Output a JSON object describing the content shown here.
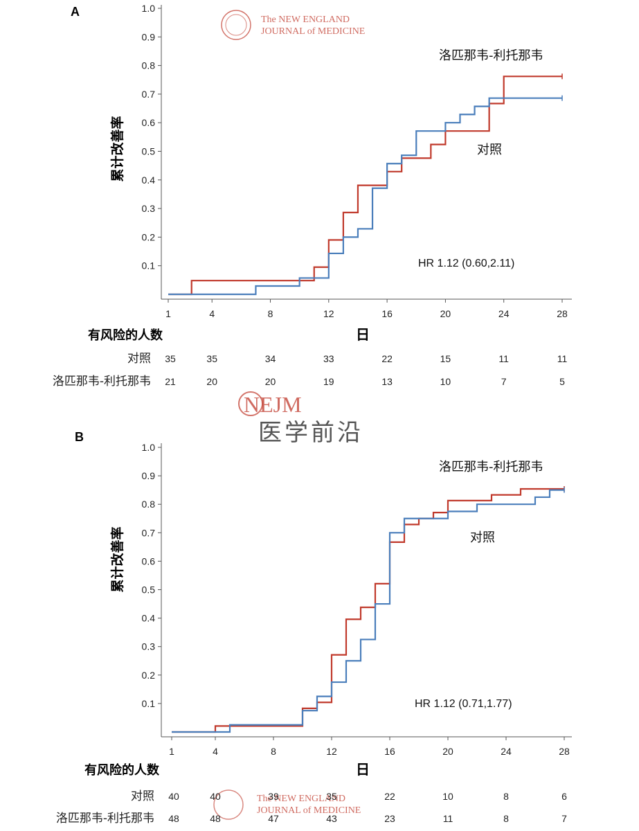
{
  "watermarks": {
    "journal_line1": "The NEW ENGLAND",
    "journal_line2": "JOURNAL of MEDICINE",
    "nejm": "NEJM",
    "center_text": "医学前沿",
    "accent": "#c0392b"
  },
  "colors": {
    "lopinavir": "#c0392b",
    "control": "#4a7ebb"
  },
  "chart_data": [
    {
      "panel": "A",
      "type": "line",
      "step": true,
      "ylabel": "累计改善率",
      "xlabel": "日",
      "yticks": [
        0.1,
        0.2,
        0.3,
        0.4,
        0.5,
        0.6,
        0.7,
        0.8,
        0.9,
        1.0
      ],
      "xticks": [
        1,
        4,
        8,
        12,
        16,
        20,
        24,
        28
      ],
      "ylim": [
        0,
        1.0
      ],
      "xlim": [
        1,
        28
      ],
      "annotation": "HR 1.12 (0.60,2.11)",
      "series": [
        {
          "name": "洛匹那韦-利托那韦",
          "color": "#c0392b",
          "x": [
            1,
            2.6,
            11,
            12,
            13,
            14,
            16,
            17,
            19,
            20,
            23,
            24,
            28
          ],
          "y": [
            0,
            0.048,
            0.095,
            0.19,
            0.286,
            0.381,
            0.429,
            0.476,
            0.524,
            0.571,
            0.667,
            0.762,
            0.762
          ]
        },
        {
          "name": "对照",
          "color": "#4a7ebb",
          "x": [
            1,
            7,
            10,
            12,
            13,
            14,
            15,
            16,
            17,
            18,
            20,
            21,
            22,
            23,
            28
          ],
          "y": [
            0,
            0.029,
            0.057,
            0.143,
            0.2,
            0.229,
            0.371,
            0.457,
            0.486,
            0.571,
            0.6,
            0.629,
            0.657,
            0.686,
            0.686
          ]
        }
      ],
      "risk_table": {
        "title": "有风险的人数",
        "rows": [
          {
            "label": "对照",
            "values": [
              "35",
              "35",
              "34",
              "33",
              "22",
              "15",
              "11",
              "11"
            ]
          },
          {
            "label": "洛匹那韦-利托那韦",
            "values": [
              "21",
              "20",
              "20",
              "19",
              "13",
              "10",
              "7",
              "5"
            ]
          }
        ]
      }
    },
    {
      "panel": "B",
      "type": "line",
      "step": true,
      "ylabel": "累计改善率",
      "xlabel": "日",
      "yticks": [
        0.1,
        0.2,
        0.3,
        0.4,
        0.5,
        0.6,
        0.7,
        0.8,
        0.9,
        1.0
      ],
      "xticks": [
        1,
        4,
        8,
        12,
        16,
        20,
        24,
        28
      ],
      "ylim": [
        0,
        1.0
      ],
      "xlim": [
        1,
        28
      ],
      "annotation": "HR 1.12 (0.71,1.77)",
      "series": [
        {
          "name": "洛匹那韦-利托那韦",
          "color": "#c0392b",
          "x": [
            1,
            4,
            10,
            11,
            12,
            13,
            14,
            15,
            16,
            17,
            18,
            19,
            20,
            23,
            25,
            28
          ],
          "y": [
            0,
            0.021,
            0.083,
            0.104,
            0.271,
            0.396,
            0.438,
            0.521,
            0.667,
            0.729,
            0.75,
            0.771,
            0.813,
            0.833,
            0.854,
            0.854
          ]
        },
        {
          "name": "对照",
          "color": "#4a7ebb",
          "x": [
            1,
            5,
            10,
            11,
            12,
            13,
            14,
            15,
            16,
            17,
            20,
            22,
            26,
            27,
            28
          ],
          "y": [
            0,
            0.025,
            0.075,
            0.125,
            0.175,
            0.25,
            0.325,
            0.45,
            0.7,
            0.75,
            0.775,
            0.8,
            0.825,
            0.85,
            0.85
          ]
        }
      ],
      "risk_table": {
        "title": "有风险的人数",
        "rows": [
          {
            "label": "对照",
            "values": [
              "40",
              "40",
              "39",
              "35",
              "22",
              "10",
              "8",
              "6"
            ]
          },
          {
            "label": "洛匹那韦-利托那韦",
            "values": [
              "48",
              "48",
              "47",
              "43",
              "23",
              "11",
              "8",
              "7"
            ]
          }
        ]
      }
    }
  ]
}
